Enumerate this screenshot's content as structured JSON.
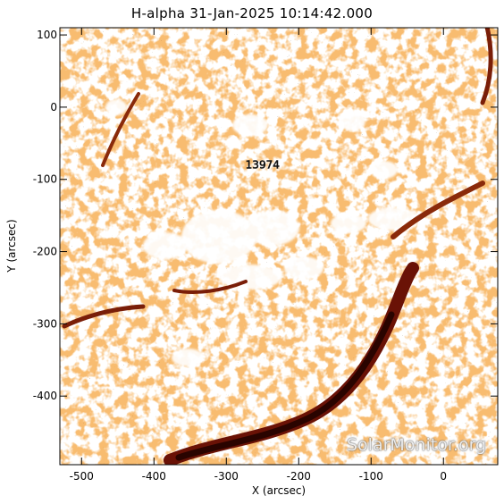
{
  "figure": {
    "title": "H-alpha 31-Jan-2025 10:14:42.000",
    "xlabel": "X (arcsec)",
    "ylabel": "Y (arcsec)",
    "xlim": [
      -530,
      75
    ],
    "ylim": [
      -495,
      110
    ],
    "xticks": [
      -500,
      -400,
      -300,
      -200,
      -100,
      0
    ],
    "yticks": [
      100,
      0,
      -100,
      -200,
      -300,
      -400
    ],
    "region_label": "13974",
    "region_position_arcsec": [
      -250,
      -85
    ],
    "watermark": "SolarMonitor.org",
    "colors": {
      "background": "#ffffff",
      "chromosphere_bright": "#f08a3c",
      "chromosphere_mid": "#d4601e",
      "filament_dark": "#6a1206",
      "filament_core": "#2a0400"
    }
  }
}
